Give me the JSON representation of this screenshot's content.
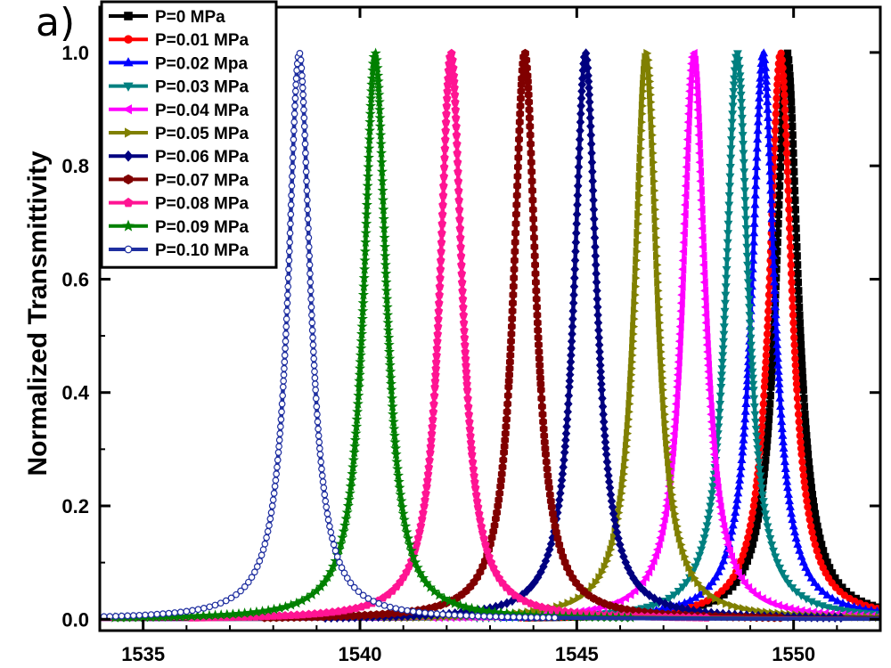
{
  "panel_label": "a)",
  "chart_data": {
    "type": "line",
    "title": "",
    "xlabel": "",
    "ylabel": "Normalized Transmittivity",
    "xlim": [
      1534,
      1552
    ],
    "ylim": [
      -0.02,
      1.08
    ],
    "x_ticks": [
      1535,
      1540,
      1545,
      1550
    ],
    "x_tick_labels": [
      "1535",
      "1540",
      "1545",
      "1550"
    ],
    "y_ticks": [
      0.0,
      0.2,
      0.4,
      0.6,
      0.8,
      1.0
    ],
    "y_tick_labels": [
      "0.0",
      "0.2",
      "0.4",
      "0.6",
      "0.8",
      "1.0"
    ],
    "grid": false,
    "legend_position": "top-left",
    "peak_shape": "lorentzian",
    "peak_fwhm": 0.62,
    "series": [
      {
        "name": "P=0 MPa",
        "peak_x": 1549.85,
        "peak_y": 1.0,
        "color": "#000000",
        "marker": "square"
      },
      {
        "name": "P=0.01 MPa",
        "peak_x": 1549.7,
        "peak_y": 1.0,
        "color": "#ff0000",
        "marker": "circle"
      },
      {
        "name": "P=0.02 Mpa",
        "peak_x": 1549.3,
        "peak_y": 1.0,
        "color": "#0000ff",
        "marker": "triangle-up"
      },
      {
        "name": "P=0.03 MPa",
        "peak_x": 1548.7,
        "peak_y": 1.0,
        "color": "#008080",
        "marker": "triangle-down"
      },
      {
        "name": "P=0.04 MPa",
        "peak_x": 1547.7,
        "peak_y": 1.0,
        "color": "#ff00ff",
        "marker": "triangle-left"
      },
      {
        "name": "P=0.05 MPa",
        "peak_x": 1546.6,
        "peak_y": 1.0,
        "color": "#808000",
        "marker": "triangle-right"
      },
      {
        "name": "P=0.06 MPa",
        "peak_x": 1545.2,
        "peak_y": 1.0,
        "color": "#000080",
        "marker": "diamond"
      },
      {
        "name": "P=0.07 MPa",
        "peak_x": 1543.8,
        "peak_y": 1.0,
        "color": "#800000",
        "marker": "hexagon"
      },
      {
        "name": "P=0.08 MPa",
        "peak_x": 1542.1,
        "peak_y": 1.0,
        "color": "#ff1493",
        "marker": "pentagon"
      },
      {
        "name": "P=0.09 MPa",
        "peak_x": 1540.35,
        "peak_y": 1.0,
        "color": "#008000",
        "marker": "star"
      },
      {
        "name": "P=0.10 MPa",
        "peak_x": 1538.6,
        "peak_y": 1.0,
        "color": "#1f2fa0",
        "marker": "open-circle"
      }
    ]
  }
}
